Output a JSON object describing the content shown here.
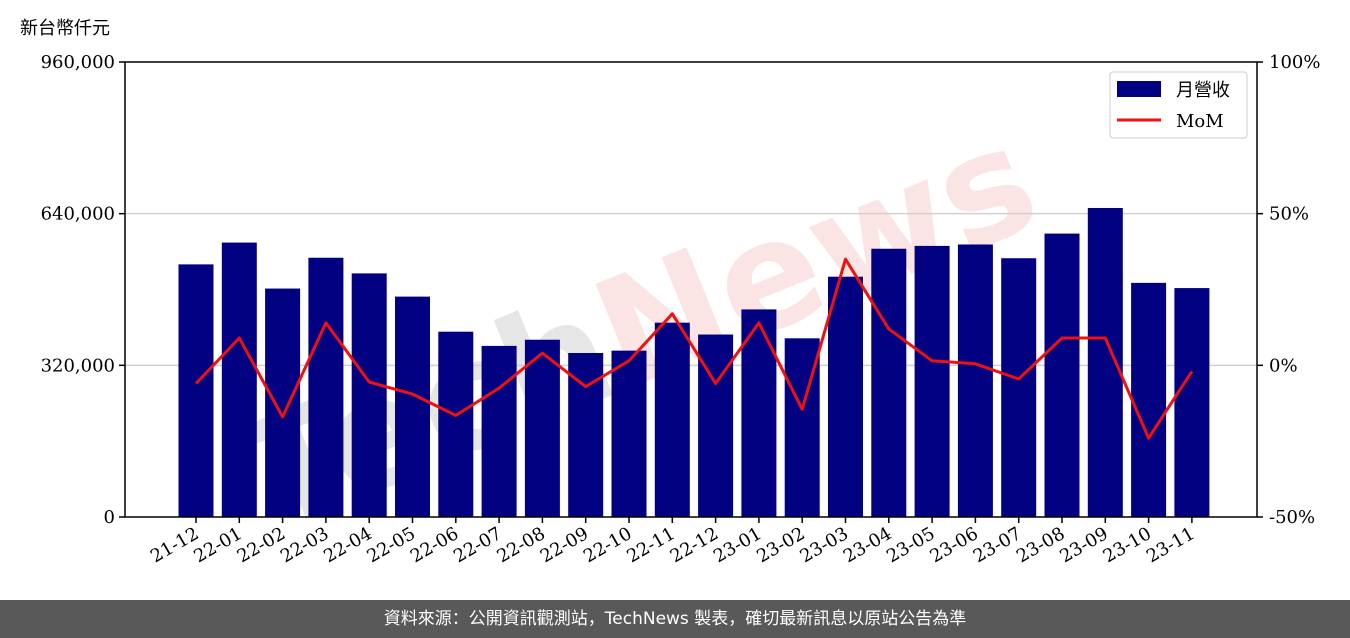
{
  "unit_label": "新台幣仟元",
  "watermark": "TechNews",
  "footer_text": "資料來源：公開資訊觀測站，TechNews 製表，確切最新訊息以原站公告為準",
  "colors": {
    "bar": "#000080",
    "line": "#ee1111",
    "grid": "#d0d0d0",
    "footer_bg": "#595959"
  },
  "chart_data": {
    "type": "bar",
    "categories": [
      "21-12",
      "22-01",
      "22-02",
      "22-03",
      "22-04",
      "22-05",
      "22-06",
      "22-07",
      "22-08",
      "22-09",
      "22-10",
      "22-11",
      "22-12",
      "23-01",
      "23-02",
      "23-03",
      "23-04",
      "23-05",
      "23-06",
      "23-07",
      "23-08",
      "23-09",
      "23-10",
      "23-11"
    ],
    "series": [
      {
        "name": "月營收",
        "type": "bar",
        "axis": "left",
        "values": [
          533000,
          579000,
          482000,
          547000,
          514000,
          465000,
          391000,
          361000,
          374000,
          346000,
          351000,
          410000,
          385000,
          438000,
          377000,
          507000,
          566000,
          572000,
          575000,
          546000,
          598000,
          652000,
          494000,
          483000
        ]
      },
      {
        "name": "MoM",
        "type": "line",
        "axis": "right",
        "values": [
          -6.0,
          9.0,
          -17.0,
          14.0,
          -5.5,
          -9.5,
          -16.5,
          -7.5,
          4.0,
          -7.0,
          1.5,
          17.0,
          -6.0,
          14.0,
          -14.5,
          35.0,
          12.0,
          1.5,
          0.5,
          -4.5,
          9.0,
          9.0,
          -24.0,
          -2.0
        ]
      }
    ],
    "y_left": {
      "lim": [
        0,
        960000
      ],
      "ticks": [
        "0",
        "320,000",
        "640,000",
        "960,000"
      ],
      "tick_values": [
        0,
        320000,
        640000,
        960000
      ]
    },
    "y_right": {
      "lim": [
        -50,
        100
      ],
      "ticks": [
        "-50%",
        "0%",
        "50%",
        "100%"
      ],
      "tick_values": [
        -50,
        0,
        50,
        100
      ]
    },
    "grid": true,
    "legend_position": "top-right"
  }
}
